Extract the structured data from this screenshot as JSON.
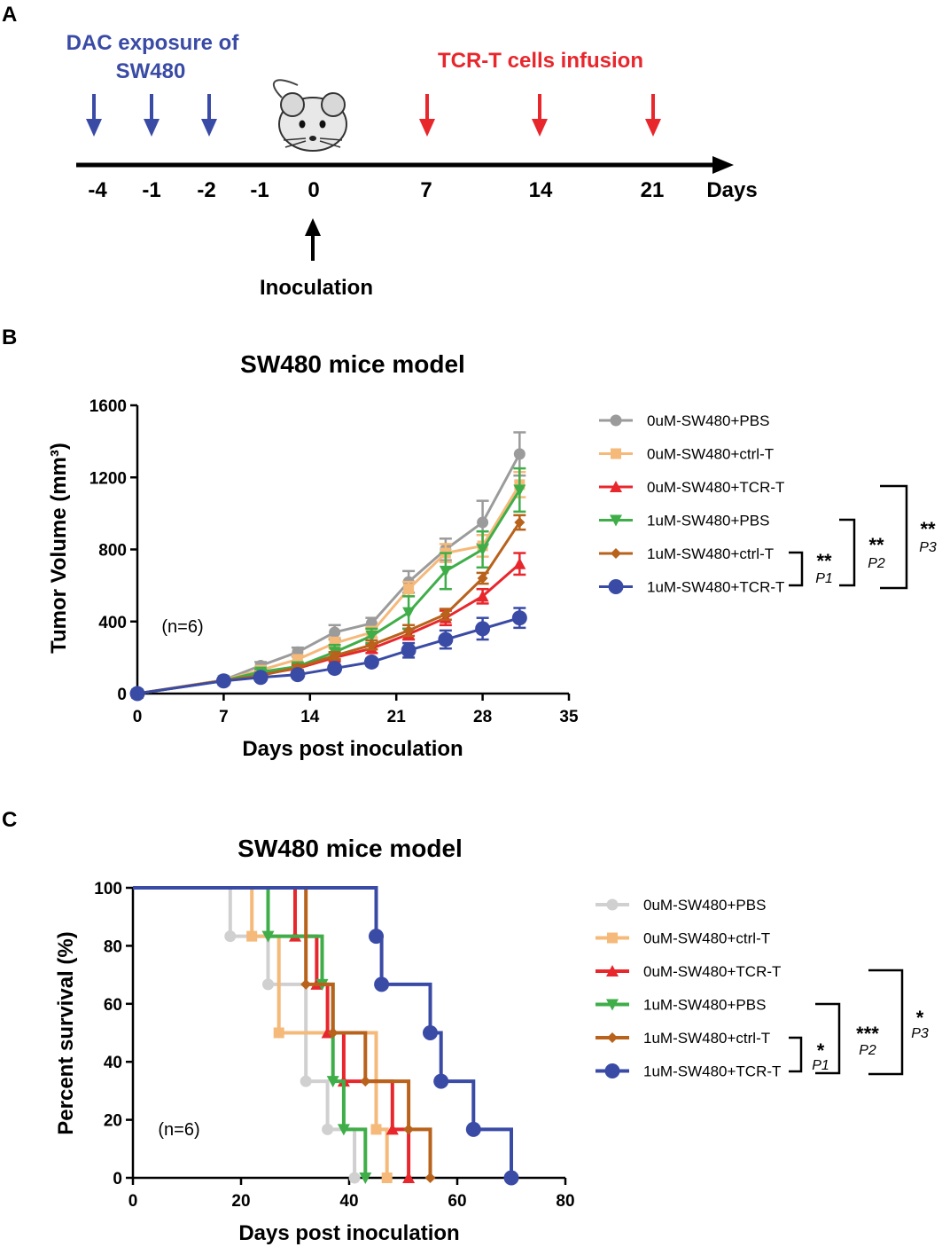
{
  "panelA": {
    "letter": "A",
    "dac_title_line1": "DAC exposure of",
    "dac_title_line2": "SW480",
    "tcr_title": "TCR-T cells infusion",
    "day_labels": [
      "-4",
      "-1",
      "-2",
      "-1",
      "0",
      "7",
      "14",
      "21"
    ],
    "days_label": "Days",
    "inoculation_label": "Inoculation",
    "dac_days": [
      "-4",
      "-1",
      "-2"
    ],
    "tcr_days": [
      "7",
      "14",
      "21"
    ],
    "colors": {
      "dac": "#3a4ba6",
      "tcr": "#e8272d",
      "axis": "#000000"
    }
  },
  "panelB": {
    "letter": "B",
    "n_label": "(n=6)",
    "sig": [
      {
        "stars": "**",
        "p": "P1"
      },
      {
        "stars": "**",
        "p": "P2"
      },
      {
        "stars": "**",
        "p": "P3"
      }
    ]
  },
  "panelC": {
    "letter": "C",
    "n_label": "(n=6)",
    "sig": [
      {
        "stars": "*",
        "p": "P1"
      },
      {
        "stars": "***",
        "p": "P2"
      },
      {
        "stars": "*",
        "p": "P3"
      }
    ]
  },
  "chart_data": [
    {
      "type": "line",
      "title": "SW480 mice model",
      "xlabel": "Days post inoculation",
      "ylabel": "Tumor Volume (mm³)",
      "xlim": [
        0,
        35
      ],
      "ylim": [
        0,
        1600
      ],
      "xticks": [
        0,
        7,
        14,
        21,
        28,
        35
      ],
      "yticks": [
        0,
        400,
        800,
        1200,
        1600
      ],
      "x": [
        0,
        7,
        10,
        13,
        16,
        19,
        22,
        25,
        28,
        31
      ],
      "series": [
        {
          "name": "0uM-SW480+PBS",
          "color": "#9b9b9b",
          "marker": "circle",
          "values": [
            0,
            75,
            155,
            230,
            340,
            390,
            620,
            800,
            950,
            1330
          ],
          "errors": [
            0,
            12,
            20,
            25,
            40,
            30,
            60,
            60,
            120,
            120
          ]
        },
        {
          "name": "0uM-SW480+ctrl-T",
          "color": "#f5b97a",
          "marker": "square",
          "values": [
            0,
            75,
            130,
            190,
            280,
            340,
            580,
            780,
            820,
            1160
          ],
          "errors": [
            0,
            10,
            18,
            20,
            30,
            30,
            40,
            50,
            60,
            70
          ]
        },
        {
          "name": "0uM-SW480+TCR-T",
          "color": "#e8272d",
          "marker": "triangle-up",
          "values": [
            0,
            72,
            105,
            140,
            200,
            250,
            330,
            420,
            540,
            720
          ],
          "errors": [
            0,
            8,
            12,
            15,
            20,
            25,
            30,
            40,
            40,
            60
          ]
        },
        {
          "name": "1uM-SW480+PBS",
          "color": "#3fae49",
          "marker": "triangle-down",
          "values": [
            0,
            72,
            120,
            150,
            230,
            320,
            450,
            680,
            800,
            1130
          ],
          "errors": [
            0,
            10,
            15,
            20,
            40,
            40,
            90,
            100,
            100,
            120
          ]
        },
        {
          "name": "1uM-SW480+ctrl-T",
          "color": "#b8621b",
          "marker": "diamond",
          "values": [
            0,
            72,
            100,
            145,
            210,
            270,
            350,
            440,
            640,
            950
          ],
          "errors": [
            0,
            8,
            10,
            15,
            20,
            25,
            30,
            30,
            30,
            40
          ]
        },
        {
          "name": "1uM-SW480+TCR-T",
          "color": "#3a4ba6",
          "marker": "circle-large",
          "values": [
            0,
            70,
            90,
            105,
            140,
            175,
            240,
            300,
            360,
            420
          ],
          "errors": [
            0,
            8,
            10,
            12,
            15,
            20,
            40,
            50,
            60,
            55
          ]
        }
      ]
    },
    {
      "type": "line",
      "subtype": "kaplan-meier",
      "title": "SW480 mice model",
      "xlabel": "Days post inoculation",
      "ylabel": "Percent survival (%)",
      "xlim": [
        0,
        80
      ],
      "ylim": [
        0,
        100
      ],
      "xticks": [
        0,
        20,
        40,
        60,
        80
      ],
      "yticks": [
        0,
        20,
        40,
        60,
        80,
        100
      ],
      "series": [
        {
          "name": "0uM-SW480+PBS",
          "color": "#d0d0d0",
          "marker": "circle",
          "steps": [
            [
              0,
              100
            ],
            [
              18,
              83.3
            ],
            [
              25,
              66.7
            ],
            [
              32,
              33.3
            ],
            [
              36,
              16.7
            ],
            [
              41,
              0
            ]
          ]
        },
        {
          "name": "0uM-SW480+ctrl-T",
          "color": "#f5b97a",
          "marker": "square",
          "steps": [
            [
              0,
              100
            ],
            [
              22,
              83.3
            ],
            [
              27,
              50
            ],
            [
              45,
              16.7
            ],
            [
              47,
              0
            ]
          ]
        },
        {
          "name": "0uM-SW480+TCR-T",
          "color": "#e8272d",
          "marker": "triangle-up",
          "steps": [
            [
              0,
              100
            ],
            [
              30,
              83.3
            ],
            [
              34,
              66.7
            ],
            [
              36,
              50
            ],
            [
              39,
              33.3
            ],
            [
              48,
              16.7
            ],
            [
              51,
              0
            ]
          ]
        },
        {
          "name": "1uM-SW480+PBS",
          "color": "#3fae49",
          "marker": "triangle-down",
          "steps": [
            [
              0,
              100
            ],
            [
              25,
              83.3
            ],
            [
              35,
              66.7
            ],
            [
              37,
              33.3
            ],
            [
              39,
              16.7
            ],
            [
              43,
              0
            ]
          ]
        },
        {
          "name": "1uM-SW480+ctrl-T",
          "color": "#b8621b",
          "marker": "diamond",
          "steps": [
            [
              0,
              100
            ],
            [
              32,
              66.7
            ],
            [
              37,
              50
            ],
            [
              43,
              33.3
            ],
            [
              51,
              16.7
            ],
            [
              55,
              0
            ]
          ]
        },
        {
          "name": "1uM-SW480+TCR-T",
          "color": "#3a4ba6",
          "marker": "circle-large",
          "steps": [
            [
              0,
              100
            ],
            [
              45,
              83.3
            ],
            [
              46,
              66.7
            ],
            [
              55,
              50
            ],
            [
              57,
              33.3
            ],
            [
              63,
              16.7
            ],
            [
              70,
              0
            ]
          ]
        }
      ]
    }
  ]
}
